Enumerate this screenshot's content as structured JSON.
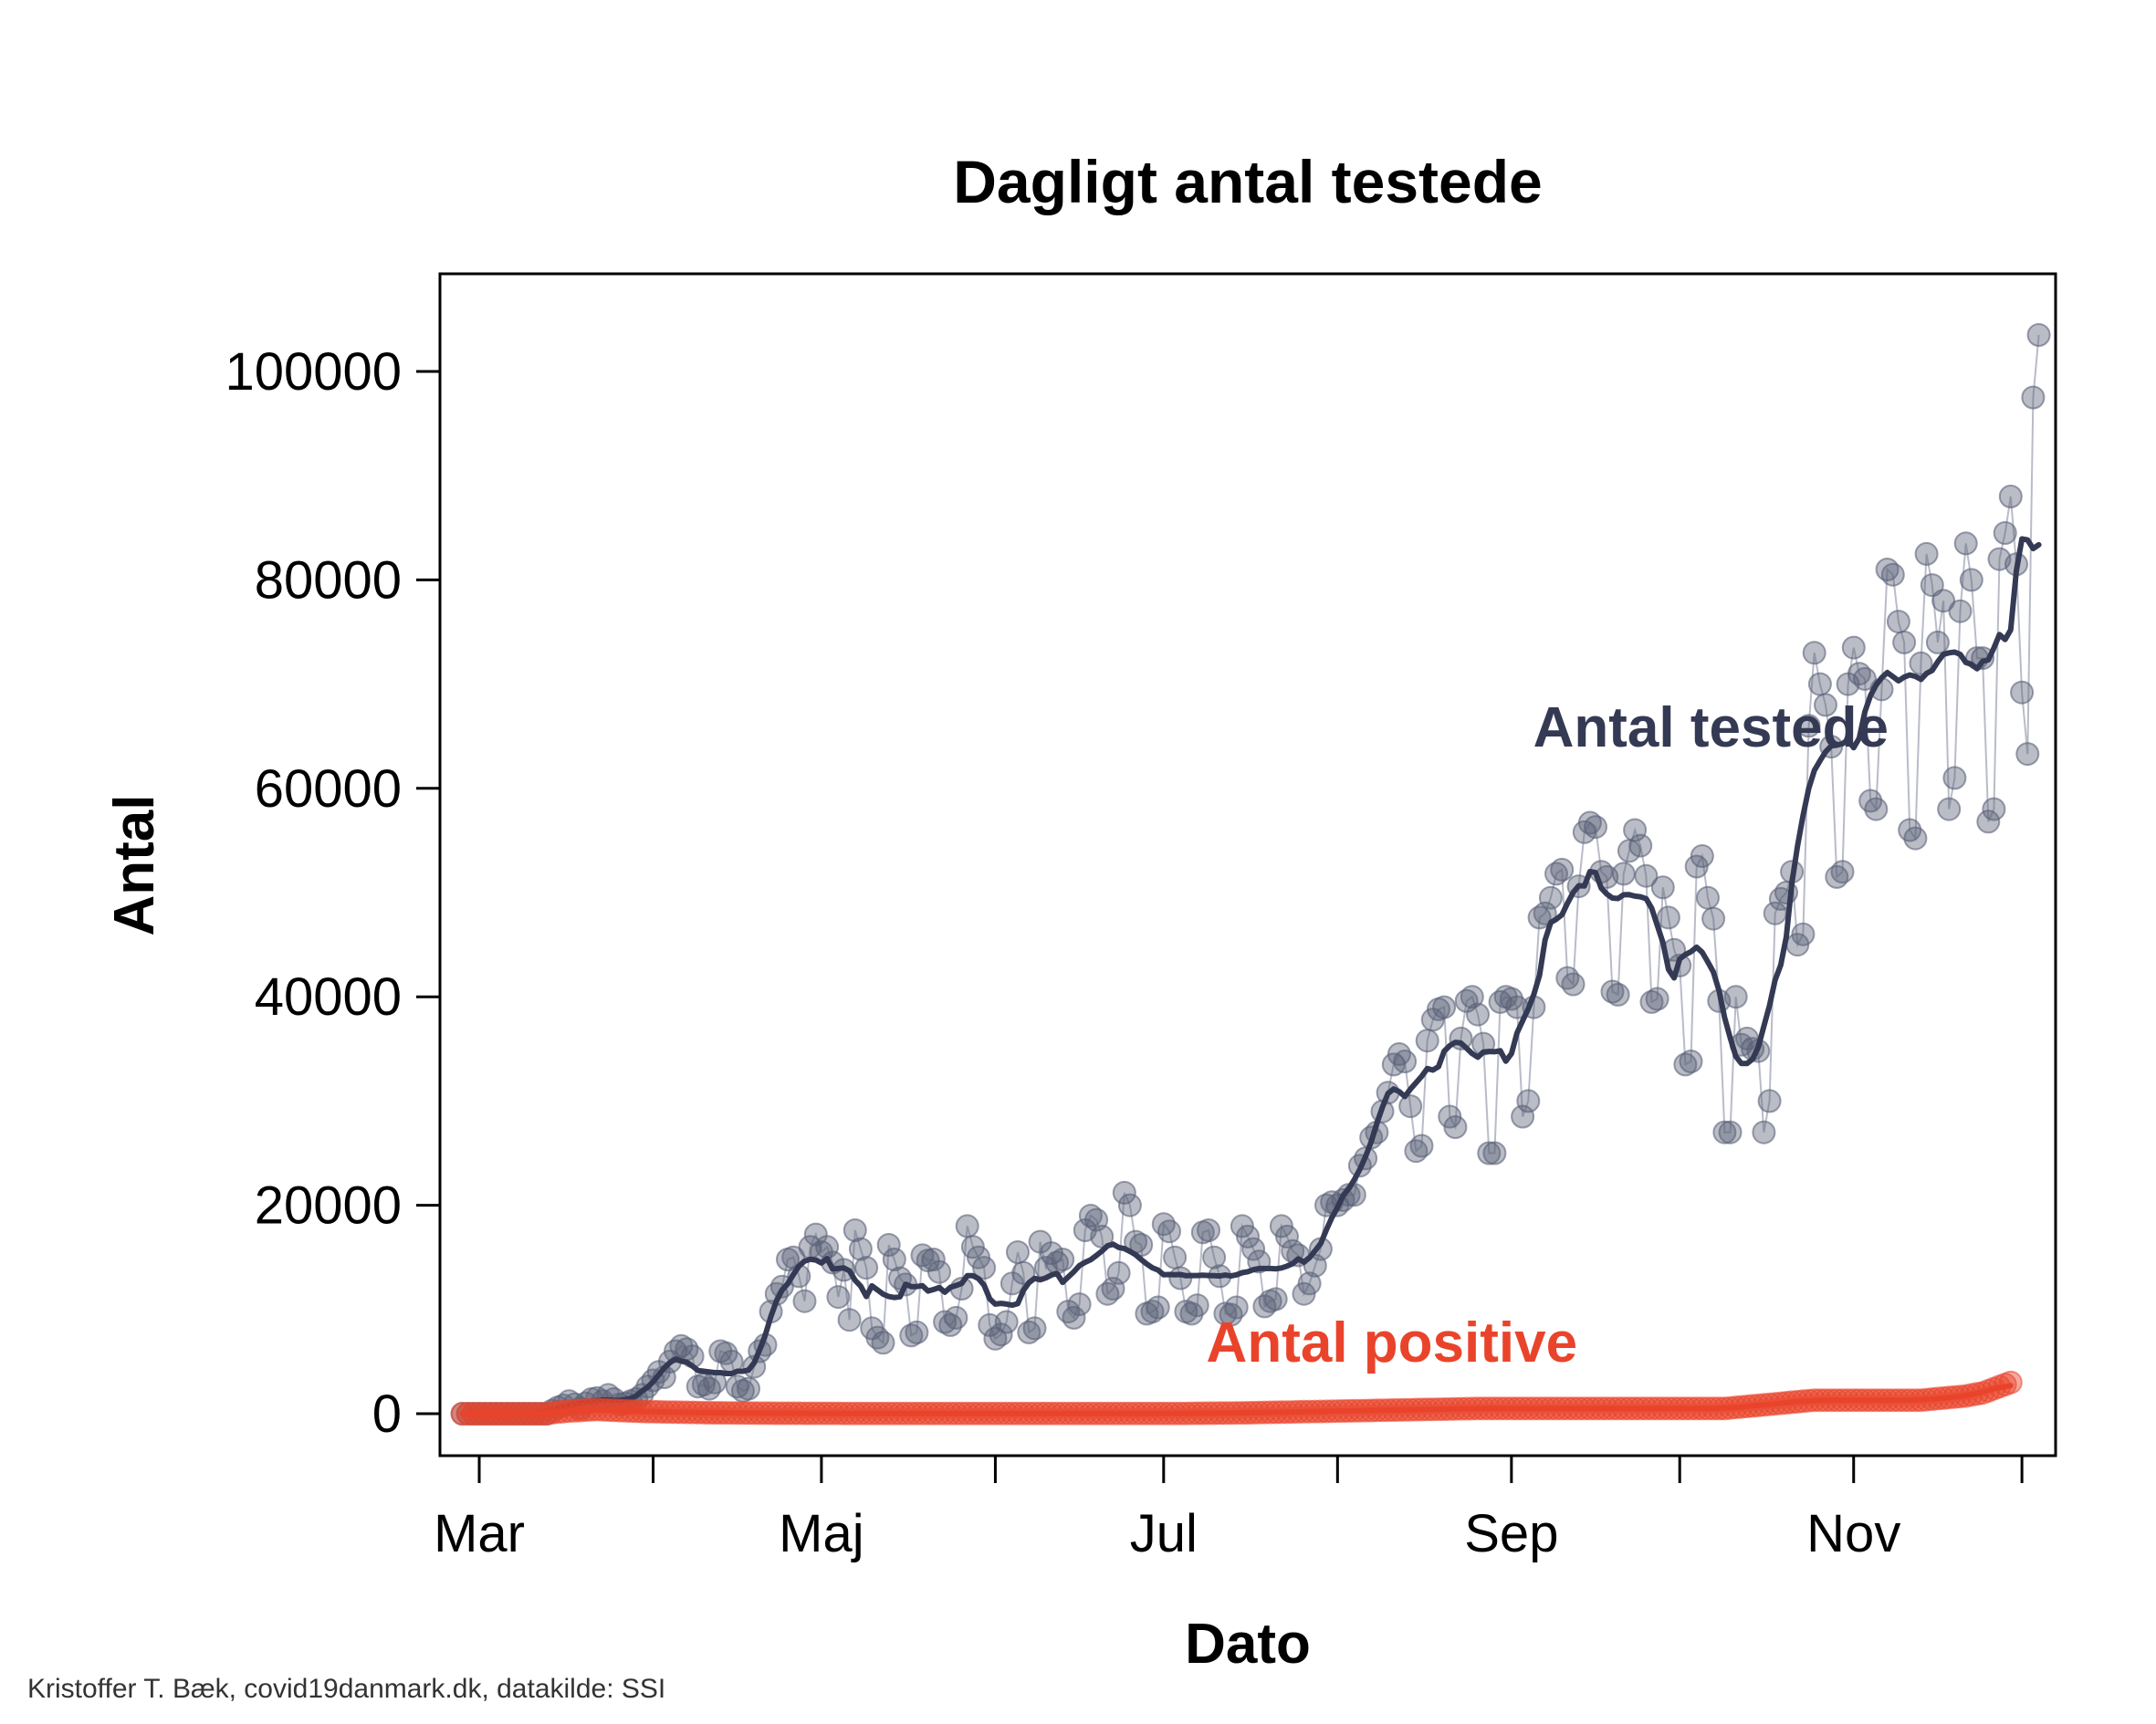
{
  "chart_data": {
    "type": "scatter",
    "title": "Dagligt antal testede",
    "xlabel": "Dato",
    "ylabel": "Antal",
    "x_ticks": [
      "Mar",
      "Maj",
      "Jul",
      "Sep",
      "Nov"
    ],
    "xlim": [
      "2020-02-23",
      "2020-12-07"
    ],
    "ylim": [
      -4000,
      109000
    ],
    "y_ticks": [
      0,
      20000,
      40000,
      60000,
      80000,
      100000
    ],
    "y_tick_labels": [
      "0",
      "20000",
      "40000",
      "60000",
      "80000",
      "100000"
    ],
    "grid": false,
    "caption": "Kristoffer T. Bæk, covid19danmark.dk, datakilde: SSI",
    "colors": {
      "testede": "#343a54",
      "testede_points": "#5a6178",
      "positive": "#e9442b",
      "spikes": "#b9bcc8"
    },
    "series": [
      {
        "name": "Antal testede",
        "label_anchor": {
          "x": "2020-09-04",
          "y": 64000
        },
        "start_date": "2020-02-27",
        "values": [
          0,
          0,
          0,
          0,
          0,
          0,
          0,
          0,
          0,
          0,
          0,
          0,
          0,
          0,
          0,
          0,
          300,
          600,
          800,
          1200,
          900,
          500,
          1000,
          1400,
          1500,
          1200,
          1800,
          1400,
          900,
          1000,
          1200,
          1400,
          1800,
          2600,
          3200,
          4000,
          3500,
          5000,
          6000,
          6500,
          6200,
          5500,
          2600,
          2800,
          2400,
          3000,
          6000,
          5800,
          5000,
          2600,
          2200,
          2400,
          4500,
          6000,
          6600,
          9800,
          11500,
          12200,
          14800,
          15000,
          13200,
          10800,
          16000,
          17200,
          15500,
          16000,
          14500,
          11200,
          13800,
          9000,
          17600,
          15800,
          14000,
          8200,
          7300,
          6800,
          16200,
          14800,
          13000,
          12400,
          7500,
          7800,
          15200,
          14700,
          14800,
          13600,
          8800,
          8500,
          9200,
          12000,
          18000,
          16000,
          15000,
          14000,
          8500,
          7200,
          7600,
          8800,
          12500,
          15500,
          13500,
          7800,
          8200,
          16500,
          14000,
          15400,
          14500,
          14800,
          9800,
          9200,
          10500,
          17600,
          19000,
          18600,
          17000,
          11500,
          12000,
          13500,
          21200,
          20000,
          16500,
          16200,
          9600,
          9800,
          10200,
          18200,
          17500,
          15000,
          13000,
          9800,
          9600,
          10400,
          17400,
          17600,
          15000,
          13200,
          9600,
          9500,
          10200,
          18000,
          17000,
          15800,
          14600,
          10300,
          10800,
          11000,
          18000,
          17000,
          15600,
          15200,
          11500,
          12500,
          14200,
          15800,
          20000,
          20300,
          20000,
          20500,
          21000,
          21000,
          23800,
          24500,
          26500,
          27000,
          29000,
          30800,
          33500,
          34500,
          33800,
          29500,
          25200,
          25700,
          35800,
          37800,
          38800,
          39000,
          28500,
          27500,
          36000,
          39600,
          40000,
          38300,
          35500,
          25000,
          25000,
          39500,
          40000,
          39800,
          39000,
          28500,
          30000,
          39000,
          47600,
          48000,
          49500,
          51800,
          52200,
          41800,
          41200,
          50600,
          55800,
          56700,
          56300,
          52000,
          51500,
          40500,
          40200,
          51800,
          54000,
          56000,
          54500,
          51600,
          39500,
          39800,
          50500,
          47600,
          44500,
          43000,
          33500,
          33800,
          52500,
          53500,
          49500,
          47500,
          39600,
          27000,
          27000,
          40000,
          35400,
          36000,
          35000,
          34800,
          27000,
          30000,
          48000,
          49400,
          50000,
          52000,
          45000,
          46000,
          66000,
          73000,
          70000,
          68000,
          64000,
          51500,
          52000,
          70000,
          73500,
          71000,
          70500,
          58800,
          58000,
          69500,
          81000,
          80500,
          76000,
          74000,
          56000,
          55200,
          72000,
          82500,
          79500,
          74000,
          78000,
          58000,
          61000,
          77000,
          83500,
          80000,
          72500,
          72500,
          56800,
          58000,
          82000,
          84500,
          88000,
          81500,
          69200,
          63300,
          97500,
          103500
        ]
      },
      {
        "name": "Antal positive",
        "label_anchor": {
          "x": "2020-07-01",
          "y": 5000
        },
        "start_date": "2020-02-27",
        "values": [
          0,
          0,
          0,
          0,
          0,
          0,
          0,
          0,
          0,
          0,
          0,
          0,
          0,
          0,
          0,
          0,
          100,
          150,
          200,
          250,
          280,
          300,
          350,
          380,
          400,
          380,
          350,
          320,
          300,
          280,
          260,
          240,
          220,
          200,
          190,
          180,
          170,
          160,
          150,
          140,
          130,
          120,
          110,
          100,
          95,
          90,
          85,
          80,
          75,
          70,
          65,
          60,
          58,
          55,
          52,
          50,
          48,
          46,
          44,
          42,
          40,
          38,
          36,
          35,
          34,
          33,
          32,
          31,
          30,
          30,
          30,
          30,
          30,
          30,
          30,
          30,
          30,
          30,
          30,
          30,
          30,
          30,
          30,
          30,
          30,
          30,
          30,
          30,
          30,
          30,
          30,
          30,
          30,
          30,
          30,
          30,
          30,
          30,
          30,
          30,
          30,
          30,
          30,
          30,
          30,
          30,
          30,
          30,
          30,
          30,
          30,
          30,
          30,
          30,
          30,
          30,
          30,
          30,
          30,
          30,
          30,
          30,
          30,
          30,
          30,
          30,
          30,
          30,
          30,
          30,
          35,
          40,
          45,
          50,
          55,
          60,
          65,
          70,
          75,
          80,
          90,
          100,
          110,
          120,
          130,
          140,
          150,
          160,
          170,
          180,
          190,
          200,
          210,
          220,
          230,
          240,
          250,
          260,
          270,
          280,
          290,
          300,
          310,
          320,
          330,
          340,
          350,
          360,
          370,
          380,
          390,
          400,
          410,
          420,
          430,
          440,
          450,
          460,
          470,
          480,
          490,
          500,
          500,
          500,
          500,
          500,
          500,
          500,
          500,
          500,
          500,
          500,
          500,
          500,
          500,
          500,
          500,
          500,
          500,
          500,
          500,
          500,
          500,
          500,
          500,
          500,
          500,
          500,
          500,
          500,
          500,
          500,
          500,
          500,
          500,
          500,
          500,
          500,
          500,
          500,
          500,
          500,
          500,
          500,
          500,
          500,
          550,
          600,
          650,
          700,
          750,
          800,
          850,
          900,
          950,
          1000,
          1050,
          1100,
          1150,
          1200,
          1250,
          1300,
          1300,
          1300,
          1300,
          1300,
          1300,
          1300,
          1300,
          1300,
          1300,
          1300,
          1300,
          1300,
          1300,
          1300,
          1300,
          1300,
          1300,
          1300,
          1300,
          1350,
          1400,
          1450,
          1500,
          1550,
          1600,
          1650,
          1700,
          1800,
          1900,
          2000,
          2200,
          2400,
          2600,
          2800,
          3000
        ]
      }
    ]
  }
}
